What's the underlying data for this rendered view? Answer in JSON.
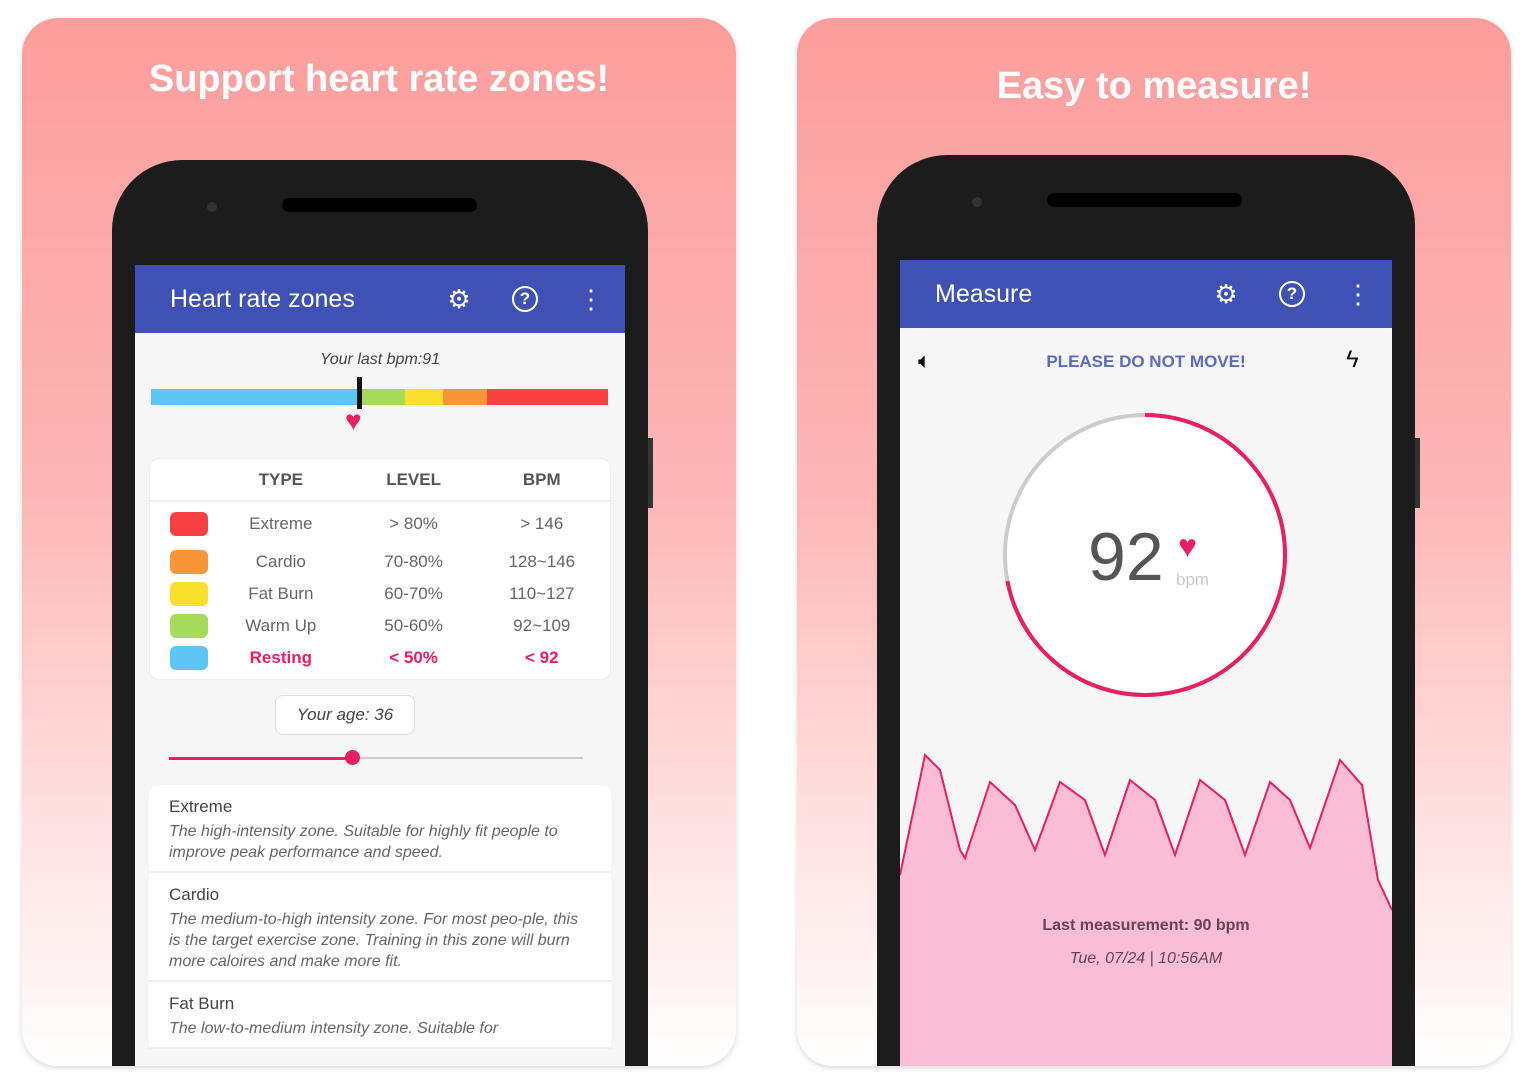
{
  "left": {
    "title": "Support heart rate zones!",
    "appbar": {
      "title": "Heart rate zones",
      "icons": [
        "gear-icon",
        "help-icon",
        "more-vert-icon"
      ]
    },
    "last_bpm": "Your last bpm:91",
    "zone_bar": {
      "colors": [
        "#5ec6f7",
        "#a6db5a",
        "#fbde2e",
        "#fb953a",
        "#f84143"
      ],
      "marker_value_bpm": 91
    },
    "table": {
      "headers": [
        "TYPE",
        "LEVEL",
        "BPM"
      ],
      "rows": [
        {
          "color": "#f84143",
          "type": "Extreme",
          "level": "> 80%",
          "bpm": "> 146"
        },
        {
          "color": "#fb953a",
          "type": "Cardio",
          "level": "70-80%",
          "bpm": "128~146"
        },
        {
          "color": "#fbde2e",
          "type": "Fat Burn",
          "level": "60-70%",
          "bpm": "110~127"
        },
        {
          "color": "#a6db5a",
          "type": "Warm Up",
          "level": "50-60%",
          "bpm": "92~109"
        },
        {
          "color": "#5ec6f7",
          "type": "Resting",
          "level": "< 50%",
          "bpm": "< 92",
          "highlight": true
        }
      ]
    },
    "age": {
      "label": "Your age: 36",
      "slider_value": 36
    },
    "descriptions": [
      {
        "title": "Extreme",
        "text": "The high-intensity zone. Suitable for highly fit people to improve peak performance and speed."
      },
      {
        "title": "Cardio",
        "text": "The medium-to-high intensity zone. For most peo-ple, this is the target exercise zone. Training in this zone will burn more caloires and make more fit."
      },
      {
        "title": "Fat Burn",
        "text": "The low-to-medium intensity zone. Suitable for"
      }
    ]
  },
  "right": {
    "title": "Easy to measure!",
    "appbar": {
      "title": "Measure",
      "icons": [
        "gear-icon",
        "help-icon",
        "more-vert-icon"
      ]
    },
    "notice": "PLEASE DO NOT MOVE!",
    "bpm_value": "92",
    "bpm_unit": "bpm",
    "progress_fraction": 0.72,
    "last_measurement": "Last measurement: 90 bpm",
    "last_time": "Tue, 07/24 | 10:56AM"
  },
  "colors": {
    "appbar": "#3f51b5",
    "accent": "#e91e63",
    "wave_fill": "#fbbcd6"
  }
}
